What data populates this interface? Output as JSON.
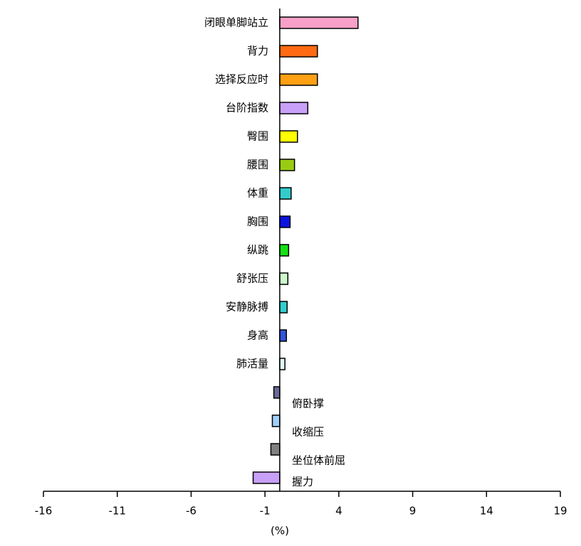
{
  "chart_data": {
    "type": "barh",
    "x_label": "(%)",
    "categories": [
      "闭眼单脚站立",
      "背力",
      "选择反应时",
      "台阶指数",
      "臀围",
      "腰围",
      "体重",
      "胸围",
      "纵跳",
      "舒张压",
      "安静脉搏",
      "身高",
      "肺活量",
      "俯卧撑",
      "收缩压",
      "坐位体前屈",
      "握力"
    ],
    "values": [
      5.3,
      2.55,
      2.55,
      1.9,
      1.2,
      1.0,
      0.77,
      0.7,
      0.6,
      0.55,
      0.5,
      0.45,
      0.35,
      -0.4,
      -0.5,
      -0.6,
      -1.8
    ],
    "colors": [
      "#f8a0c8",
      "#ff6a13",
      "#ff9f13",
      "#c8a0f8",
      "#ffff00",
      "#99cc11",
      "#33cccc",
      "#0a14e0",
      "#14e014",
      "#ccf8cc",
      "#33cccc",
      "#3355dd",
      "#e0f8f8",
      "#6a6a99",
      "#a0d0f8",
      "#808080",
      "#c8a0f8"
    ],
    "xlim": [
      -16,
      19
    ],
    "xticks": [
      -16,
      -11,
      -6,
      -1,
      4,
      9,
      14,
      19
    ]
  }
}
